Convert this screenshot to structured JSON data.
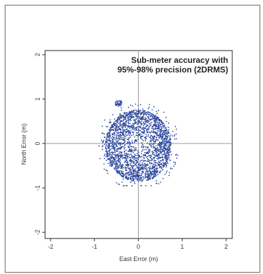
{
  "chart_data": {
    "type": "scatter",
    "title": "",
    "xlabel": "East Error (m)",
    "ylabel": "North Error (m)",
    "xlim": [
      -2,
      2
    ],
    "ylim": [
      -2,
      2
    ],
    "xticks": [
      "-2",
      "-1",
      "0",
      "1",
      "2"
    ],
    "yticks": [
      "-2",
      "-1",
      "0",
      "1",
      "2"
    ],
    "grid": false,
    "reference_lines": {
      "x": 0,
      "y": 0
    },
    "annotation": [
      "Sub-meter accuracy with",
      "95%-98% precision (2DRMS)"
    ],
    "series": [
      {
        "color": "#2f4a9e",
        "marker": "point",
        "cloud": {
          "center": [
            0.0,
            -0.05
          ],
          "radius": 0.75,
          "approx_points": 2500,
          "extent_x": [
            -0.9,
            0.9
          ],
          "extent_y": [
            -0.95,
            1.0
          ]
        }
      }
    ]
  }
}
